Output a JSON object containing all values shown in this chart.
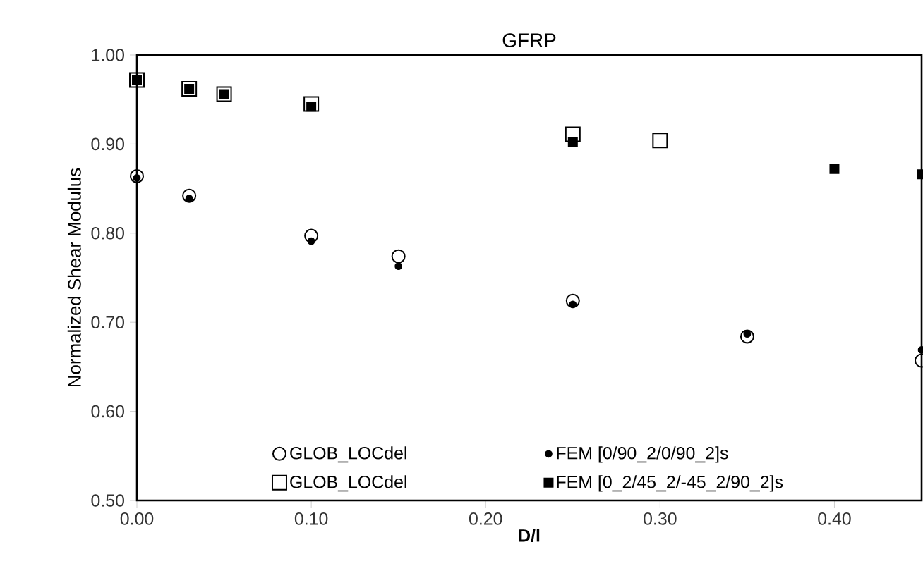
{
  "chart_data": {
    "type": "scatter",
    "title": "GFRP",
    "xlabel": "D/l",
    "ylabel": "Normalized Shear Modulus",
    "xlim": [
      0,
      0.45
    ],
    "ylim": [
      0.5,
      1.0
    ],
    "xticks": [
      {
        "value": 0,
        "label": "0.00"
      },
      {
        "value": 0.1,
        "label": "0.10"
      },
      {
        "value": 0.2,
        "label": "0.20"
      },
      {
        "value": 0.3,
        "label": "0.30"
      },
      {
        "value": 0.4,
        "label": "0.40"
      }
    ],
    "yticks": [
      {
        "value": 0.5,
        "label": "0.50"
      },
      {
        "value": 0.6,
        "label": "0.60"
      },
      {
        "value": 0.7,
        "label": "0.70"
      },
      {
        "value": 0.8,
        "label": "0.80"
      },
      {
        "value": 0.9,
        "label": "0.90"
      },
      {
        "value": 1.0,
        "label": "1.00"
      }
    ],
    "grid": false,
    "legend": "bottom",
    "series": [
      {
        "name": "GLOB_LOCdel",
        "color": "#000000",
        "marker": "circle",
        "x": [
          0,
          0.03,
          0.1,
          0.15,
          0.25,
          0.35,
          0.45
        ],
        "values": [
          0.864,
          0.842,
          0.797,
          0.774,
          0.724,
          0.684,
          0.657
        ]
      },
      {
        "name": "FEM [0/90_2/0/90_2]s",
        "color": "#000000",
        "marker": "circle",
        "x": [
          0,
          0.03,
          0.1,
          0.15,
          0.25,
          0.35,
          0.45
        ],
        "values": [
          0.862,
          0.839,
          0.791,
          0.763,
          0.72,
          0.687,
          0.669
        ]
      },
      {
        "name": "GLOB_LOCdel",
        "color": "#000000",
        "marker": "square",
        "x": [
          0,
          0.03,
          0.05,
          0.1,
          0.25,
          0.3
        ],
        "values": [
          0.972,
          0.962,
          0.956,
          0.945,
          0.911,
          0.904
        ]
      },
      {
        "name": "FEM [0_2/45_2/-45_2/90_2]s",
        "color": "#000000",
        "marker": "square",
        "x": [
          0,
          0.03,
          0.05,
          0.1,
          0.25,
          0.4,
          0.45
        ],
        "values": [
          0.972,
          0.962,
          0.956,
          0.942,
          0.902,
          0.872,
          0.866
        ]
      }
    ]
  }
}
